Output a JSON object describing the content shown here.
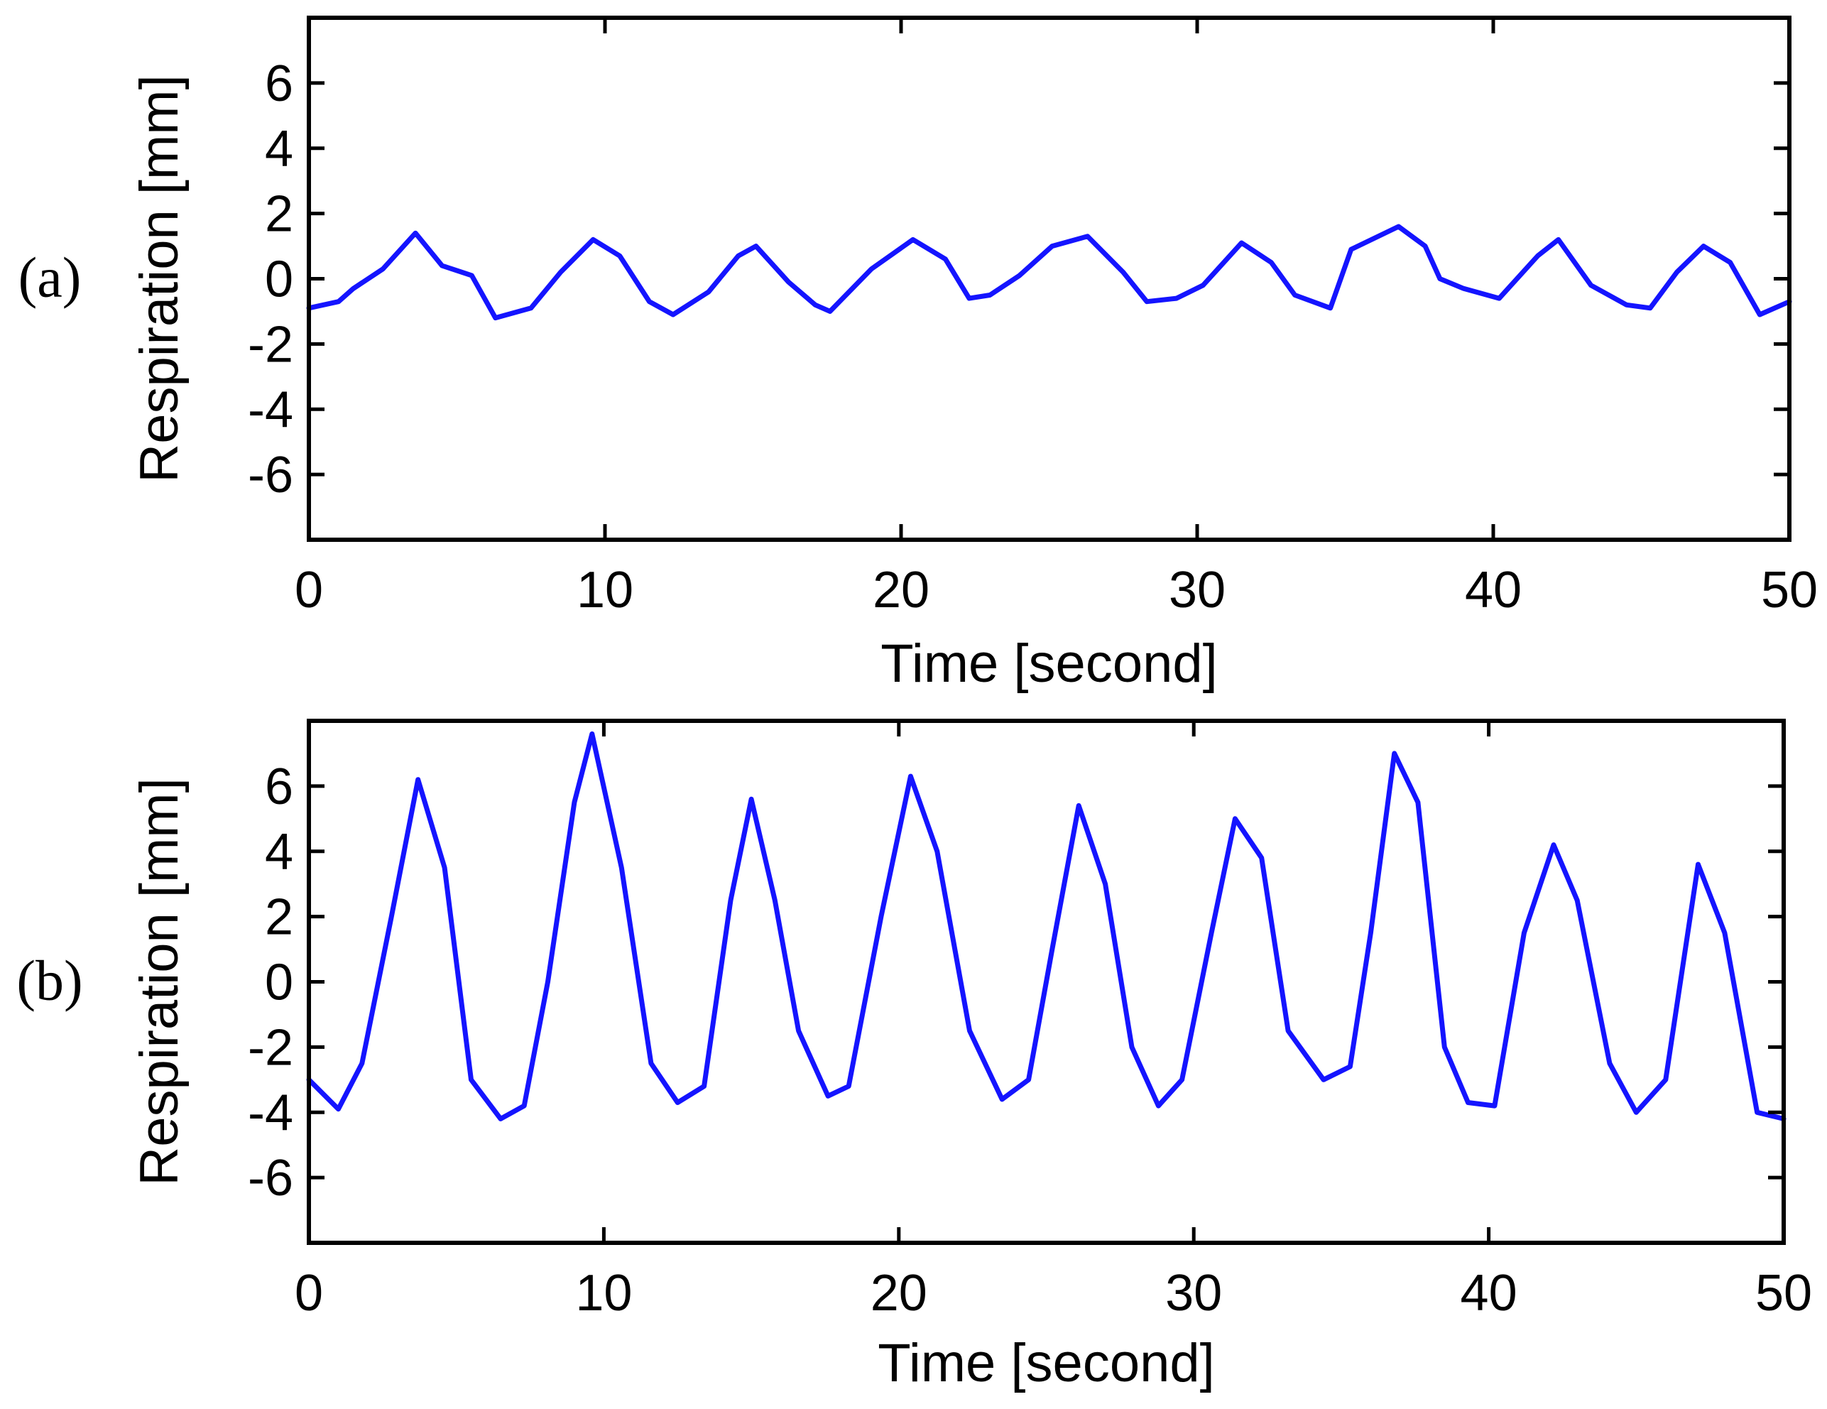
{
  "chart_data": [
    {
      "type": "line",
      "panel_label": "(a)",
      "xlabel": "Time [second]",
      "ylabel": "Respiration [mm]",
      "xlim": [
        0,
        50
      ],
      "ylim": [
        -8,
        8
      ],
      "xticks": [
        0,
        10,
        20,
        30,
        40,
        50
      ],
      "yticks": [
        -6,
        -4,
        -2,
        0,
        2,
        4,
        6
      ],
      "grid": false,
      "line_color": "#1414ff",
      "series": [
        {
          "x": [
            0,
            1,
            1.5,
            2.5,
            3.6,
            4.5,
            5.5,
            6.3,
            7.5,
            8.5,
            9.6,
            10.5,
            11.5,
            12.3,
            13.5,
            14.5,
            15.1,
            16.2,
            17.1,
            17.6,
            19,
            20.4,
            21.5,
            22.3,
            23,
            24,
            25.1,
            26.3,
            27.5,
            28.3,
            29.3,
            30.2,
            31.5,
            32.5,
            33.3,
            34.5,
            35.2,
            36.8,
            37.7,
            38.2,
            39,
            40.2,
            41.5,
            42.2,
            43.3,
            44.5,
            45.3,
            46.2,
            47.1,
            48,
            49,
            50
          ],
          "y": [
            -0.9,
            -0.7,
            -0.3,
            0.3,
            1.4,
            0.4,
            0.1,
            -1.2,
            -0.9,
            0.2,
            1.2,
            0.7,
            -0.7,
            -1.1,
            -0.4,
            0.7,
            1.0,
            -0.1,
            -0.8,
            -1.0,
            0.3,
            1.2,
            0.6,
            -0.6,
            -0.5,
            0.1,
            1.0,
            1.3,
            0.2,
            -0.7,
            -0.6,
            -0.2,
            1.1,
            0.5,
            -0.5,
            -0.9,
            0.9,
            1.6,
            1.0,
            0.0,
            -0.3,
            -0.6,
            0.7,
            1.2,
            -0.2,
            -0.8,
            -0.9,
            0.2,
            1.0,
            0.5,
            -1.1,
            -0.7
          ]
        }
      ]
    },
    {
      "type": "line",
      "panel_label": "(b)",
      "xlabel": "Time [second]",
      "ylabel": "Respiration [mm]",
      "xlim": [
        0,
        50
      ],
      "ylim": [
        -8,
        8
      ],
      "xticks": [
        0,
        10,
        20,
        30,
        40,
        50
      ],
      "yticks": [
        -6,
        -4,
        -2,
        0,
        2,
        4,
        6
      ],
      "grid": false,
      "line_color": "#1414ff",
      "series": [
        {
          "x": [
            0,
            1,
            1.8,
            2.8,
            3.7,
            4.6,
            5.5,
            6.5,
            7.3,
            8.1,
            9,
            9.6,
            10.6,
            11.6,
            12.5,
            13.4,
            14.3,
            15,
            15.8,
            16.6,
            17.6,
            18.3,
            19.4,
            20.4,
            21.3,
            22.4,
            23.5,
            24.4,
            25.2,
            26.1,
            27.0,
            27.9,
            28.8,
            29.6,
            30.6,
            31.4,
            32.3,
            33.2,
            34.4,
            35.3,
            36.0,
            36.8,
            37.6,
            38.5,
            39.3,
            40.2,
            41.2,
            42.2,
            43.0,
            44.1,
            45.0,
            46.0,
            47.1,
            48.0,
            49.1,
            50
          ],
          "y": [
            -3.0,
            -3.9,
            -2.5,
            2.0,
            6.2,
            3.5,
            -3.0,
            -4.2,
            -3.8,
            0.0,
            5.5,
            7.6,
            3.5,
            -2.5,
            -3.7,
            -3.2,
            2.5,
            5.6,
            2.5,
            -1.5,
            -3.5,
            -3.2,
            2.0,
            6.3,
            4.0,
            -1.5,
            -3.6,
            -3.0,
            1.0,
            5.4,
            3.0,
            -2.0,
            -3.8,
            -3.0,
            1.5,
            5.0,
            3.8,
            -1.5,
            -3.0,
            -2.6,
            1.5,
            7.0,
            5.5,
            -2.0,
            -3.7,
            -3.8,
            1.5,
            4.2,
            2.5,
            -2.5,
            -4.0,
            -3.0,
            3.6,
            1.5,
            -4.0,
            -4.2
          ]
        }
      ]
    }
  ]
}
